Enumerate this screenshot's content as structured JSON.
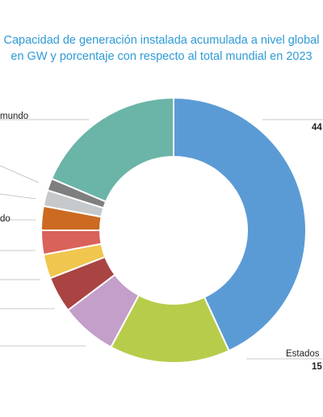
{
  "chart_data": {
    "type": "donut",
    "title_lines": [
      "Capacidad de generación instalada acumulada a nivel global",
      "en GW y porcentaje con respecto al total mundial en 2023"
    ],
    "slices": [
      {
        "label": "",
        "value": 44,
        "color": "#5b9bd5"
      },
      {
        "label": "Estados",
        "value": 15,
        "color": "#b7cc4b"
      },
      {
        "label": "",
        "value": 7,
        "color": "#c39fc9"
      },
      {
        "label": "",
        "value": 4.5,
        "color": "#a94442"
      },
      {
        "label": "",
        "value": 3,
        "color": "#f0c64e"
      },
      {
        "label": "",
        "value": 3,
        "color": "#d9625a"
      },
      {
        "label": "do",
        "value": 3,
        "color": "#cc6a22"
      },
      {
        "label": "",
        "value": 2,
        "color": "#c5c9cc"
      },
      {
        "label": "",
        "value": 1.5,
        "color": "#7f7f7f"
      },
      {
        "label": "mundo",
        "value": 19,
        "color": "#6bb4a8"
      }
    ],
    "visible_values": {
      "top_right": "44",
      "bottom_right": "15"
    }
  }
}
